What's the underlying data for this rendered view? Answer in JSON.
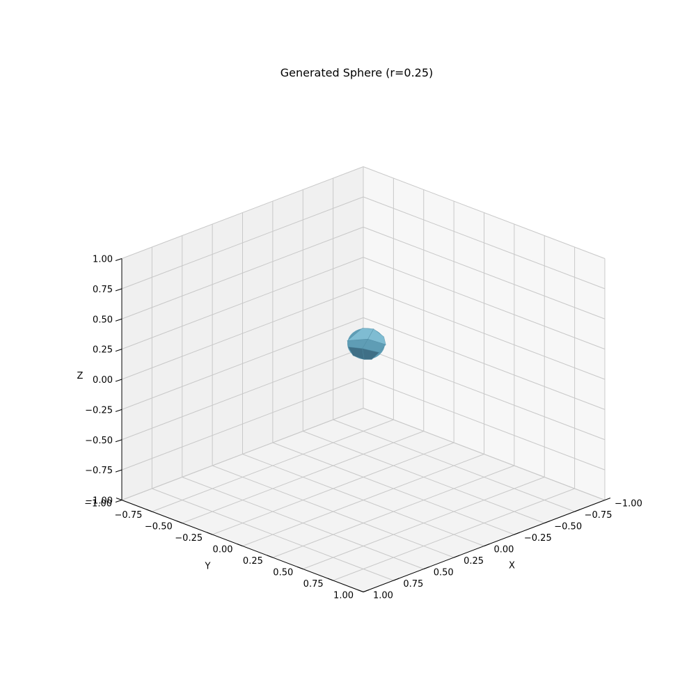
{
  "chart_data": {
    "type": "surface3d",
    "title": "Generated Sphere (r=0.25)",
    "xlabel": "X",
    "ylabel": "Y",
    "zlabel": "Z",
    "xlim": [
      -1.0,
      1.0
    ],
    "ylim": [
      -1.0,
      1.0
    ],
    "zlim": [
      -1.0,
      1.0
    ],
    "xticks": [
      "−1.00",
      "−0.75",
      "−0.50",
      "−0.25",
      "0.00",
      "0.25",
      "0.50",
      "0.75",
      "1.00"
    ],
    "yticks": [
      "−1.00",
      "−0.75",
      "−0.50",
      "−0.25",
      "0.00",
      "0.25",
      "0.50",
      "0.75",
      "1.00"
    ],
    "zticks": [
      "−1.00",
      "−0.75",
      "−0.50",
      "−0.25",
      "0.00",
      "0.25",
      "0.50",
      "0.75",
      "1.00"
    ],
    "grid": true,
    "surface": {
      "shape": "sphere",
      "center": [
        0.0,
        0.0,
        0.0
      ],
      "radius": 0.25,
      "color": "#6aa9c2"
    }
  },
  "colors": {
    "pane_left": "#f0f0f0",
    "pane_right": "#f7f7f7",
    "pane_floor": "#f3f3f3",
    "grid": "#c8c8c8",
    "axis": "#000000",
    "surface_light": "#7fbcd2",
    "surface_mid": "#5f9db5",
    "surface_dark": "#3f6f86"
  }
}
